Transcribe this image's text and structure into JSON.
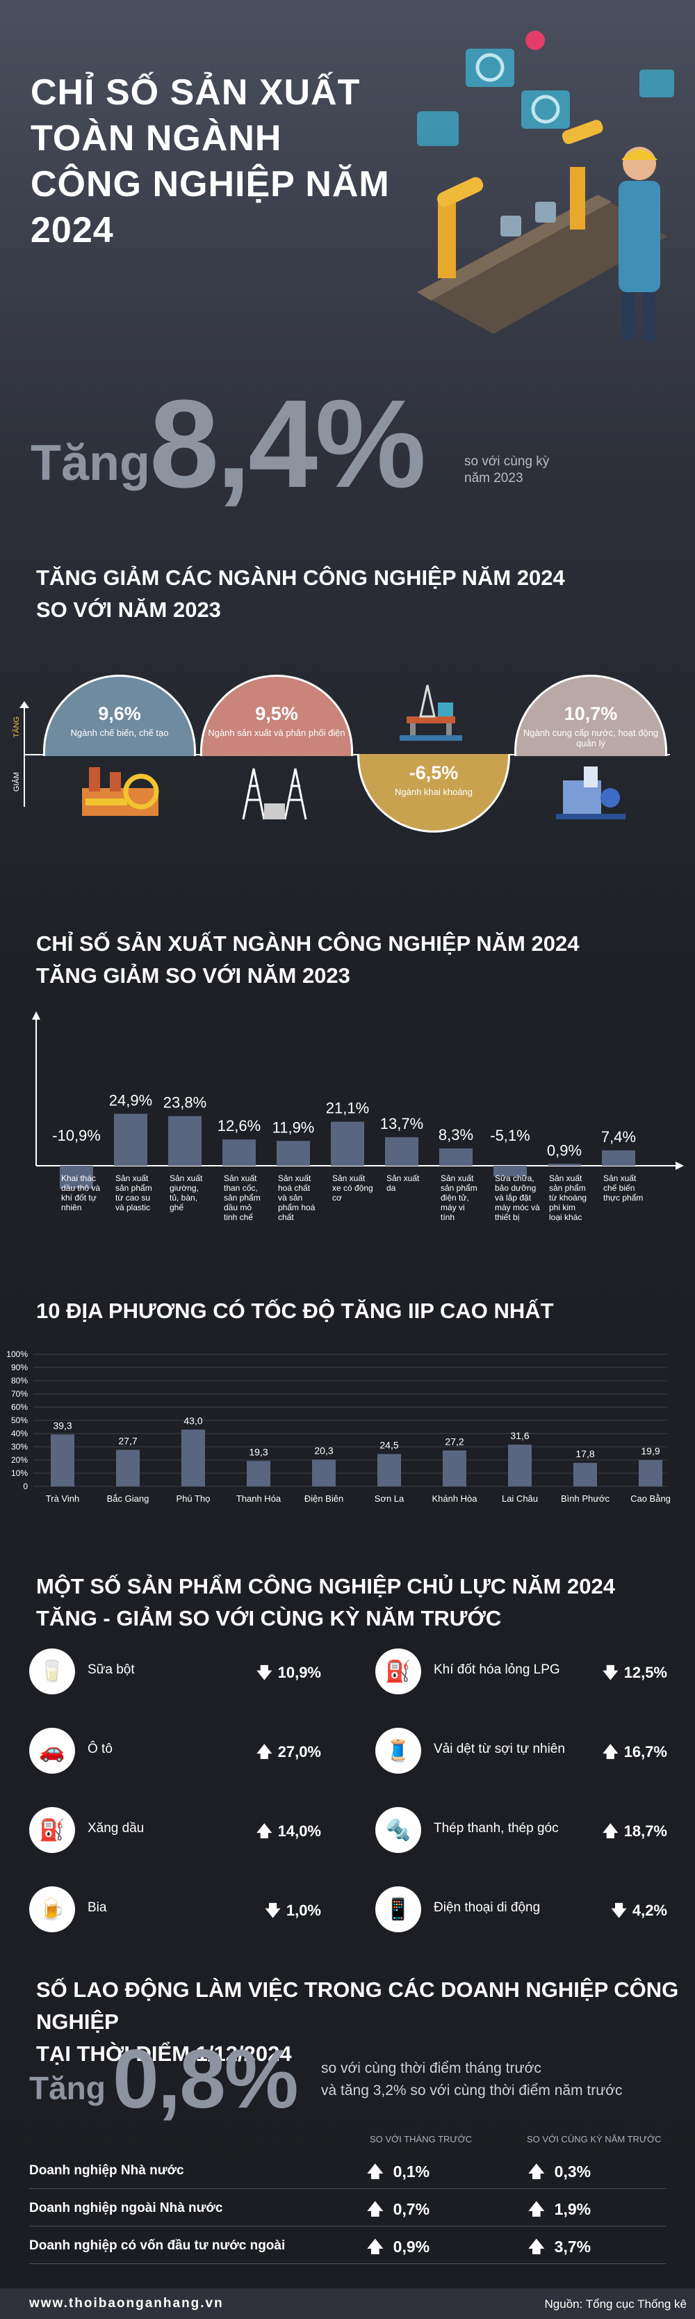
{
  "title": "CHỈ SỐ SẢN XUẤT TOÀN NGÀNH CÔNG NGHIỆP NĂM 2024",
  "headline": {
    "prefix": "Tăng",
    "value": "8,4%",
    "note": "so với cùng kỳ năm 2023"
  },
  "section1": {
    "title_line1": "TĂNG GIẢM CÁC NGÀNH CÔNG NGHIỆP NĂM 2024",
    "title_line2": "SO VỚI NĂM 2023",
    "axis_up": "TĂNG",
    "axis_down": "GIẢM",
    "items": [
      {
        "value": "9,6%",
        "label": "Ngành chế biến, chế tạo",
        "color": "#6f8ba0"
      },
      {
        "value": "9,5%",
        "label": "Ngành sản xuất và phân phối điện",
        "color": "#c9857a"
      },
      {
        "value": "-6,5%",
        "label": "Ngành khai khoáng",
        "color": "#c9a24f"
      },
      {
        "value": "10,7%",
        "label": "Ngành cung cấp nước, hoạt động quản lý",
        "color": "#b9a9a6"
      }
    ]
  },
  "section2": {
    "title_line1": "CHỈ SỐ SẢN XUẤT NGÀNH CÔNG NGHIỆP NĂM 2024",
    "title_line2": "TĂNG GIẢM SO VỚI NĂM 2023"
  },
  "section3": {
    "title": "10 ĐỊA PHƯƠNG CÓ TỐC ĐỘ TĂNG IIP CAO NHẤT"
  },
  "section4": {
    "title_line1": "MỘT SỐ SẢN PHẨM CÔNG NGHIỆP CHỦ LỰC NĂM 2024",
    "title_line2": "TĂNG - GIẢM SO VỚI CÙNG KỲ NĂM TRƯỚC",
    "products": [
      {
        "name": "Sữa bột",
        "value": "10,9%",
        "dir": "down",
        "icon": "milk-powder-icon",
        "glyph": "🥛"
      },
      {
        "name": "Khí đốt hóa lỏng LPG",
        "value": "12,5%",
        "dir": "down",
        "icon": "lpg-tank-icon",
        "glyph": "⛽"
      },
      {
        "name": "Ô tô",
        "value": "27,0%",
        "dir": "up",
        "icon": "car-icon",
        "glyph": "🚗"
      },
      {
        "name": "Vải dệt từ sợi tự nhiên",
        "value": "16,7%",
        "dir": "up",
        "icon": "fabric-icon",
        "glyph": "🧵"
      },
      {
        "name": "Xăng dầu",
        "value": "14,0%",
        "dir": "up",
        "icon": "fuel-pump-icon",
        "glyph": "⛽"
      },
      {
        "name": "Thép thanh, thép góc",
        "value": "18,7%",
        "dir": "up",
        "icon": "steel-bar-icon",
        "glyph": "🔩"
      },
      {
        "name": "Bia",
        "value": "1,0%",
        "dir": "down",
        "icon": "beer-icon",
        "glyph": "🍺"
      },
      {
        "name": "Điện thoại di động",
        "value": "4,2%",
        "dir": "down",
        "icon": "mobile-phone-icon",
        "glyph": "📱"
      }
    ]
  },
  "section5": {
    "title_line1": "SỐ LAO ĐỘNG LÀM VIỆC TRONG CÁC DOANH NGHIỆP CÔNG NGHIỆP",
    "title_line2": "TẠI THỜI ĐIỂM 1/12/2024",
    "prefix": "Tăng",
    "value": "0,8%",
    "note_line1": "so với cùng thời điểm tháng trước",
    "note_line2": "và tăng 3,2% so với cùng thời điểm năm trước",
    "col1": "SO VỚI THÁNG TRƯỚC",
    "col2": "SO VỚI CÙNG KỲ NĂM TRƯỚC",
    "rows": [
      {
        "label": "Doanh nghiệp Nhà nước",
        "v1": "0,1%",
        "v2": "0,3%"
      },
      {
        "label": "Doanh nghiệp ngoài Nhà nước",
        "v1": "0,7%",
        "v2": "1,9%"
      },
      {
        "label": "Doanh nghiệp có vốn đầu tư nước ngoài",
        "v1": "0,9%",
        "v2": "3,7%"
      }
    ]
  },
  "footer": {
    "site": "www.thoibaonganhang.vn",
    "source": "Nguồn: Tổng cục Thống kê"
  },
  "chart_data": [
    {
      "type": "bar",
      "categories": [
        "Khai thác dầu thô và khí đốt tự nhiên",
        "Sản xuất sản phẩm từ cao su và plastic",
        "Sản xuất giường, tủ, bàn, ghế",
        "Sản xuất than cốc, sản phẩm dầu mỏ tinh chế",
        "Sản xuất hoá chất và sản phẩm hoá chất",
        "Sản xuất xe có động cơ",
        "Sản xuất da",
        "Sản xuất sản phẩm điện tử, máy vi tính",
        "Sửa chữa, bảo dưỡng và lắp đặt máy móc và thiết bị",
        "Sản xuất sản phẩm từ khoáng phi kim loại khác",
        "Sản xuất chế biến thực phẩm"
      ],
      "values": [
        -10.9,
        24.9,
        23.8,
        12.6,
        11.9,
        21.1,
        13.7,
        8.3,
        -5.1,
        0.9,
        7.4
      ],
      "labels": [
        "-10,9%",
        "24,9%",
        "23,8%",
        "12,6%",
        "11,9%",
        "21,1%",
        "13,7%",
        "8,3%",
        "-5,1%",
        "0,9%",
        "7,4%"
      ],
      "bar_color": "#5a6680",
      "ylim": [
        -15,
        40
      ]
    },
    {
      "type": "bar",
      "categories": [
        "Trà Vinh",
        "Bắc Giang",
        "Phú Thọ",
        "Thanh Hóa",
        "Điện Biên",
        "Sơn La",
        "Khánh Hòa",
        "Lai Châu",
        "Bình Phước",
        "Cao Bằng"
      ],
      "values": [
        39.3,
        27.7,
        43.0,
        19.3,
        20.3,
        24.5,
        27.2,
        31.6,
        17.8,
        19.9
      ],
      "labels": [
        "39,3",
        "27,7",
        "43,0",
        "19,3",
        "20,3",
        "24,5",
        "27,2",
        "31,6",
        "17,8",
        "19,9"
      ],
      "yticks": [
        "0",
        "10%",
        "20%",
        "30%",
        "40%",
        "50%",
        "60%",
        "70%",
        "80%",
        "90%",
        "100%"
      ],
      "ylim": [
        0,
        100
      ],
      "grid": true,
      "bar_color": "#5a6680"
    }
  ]
}
